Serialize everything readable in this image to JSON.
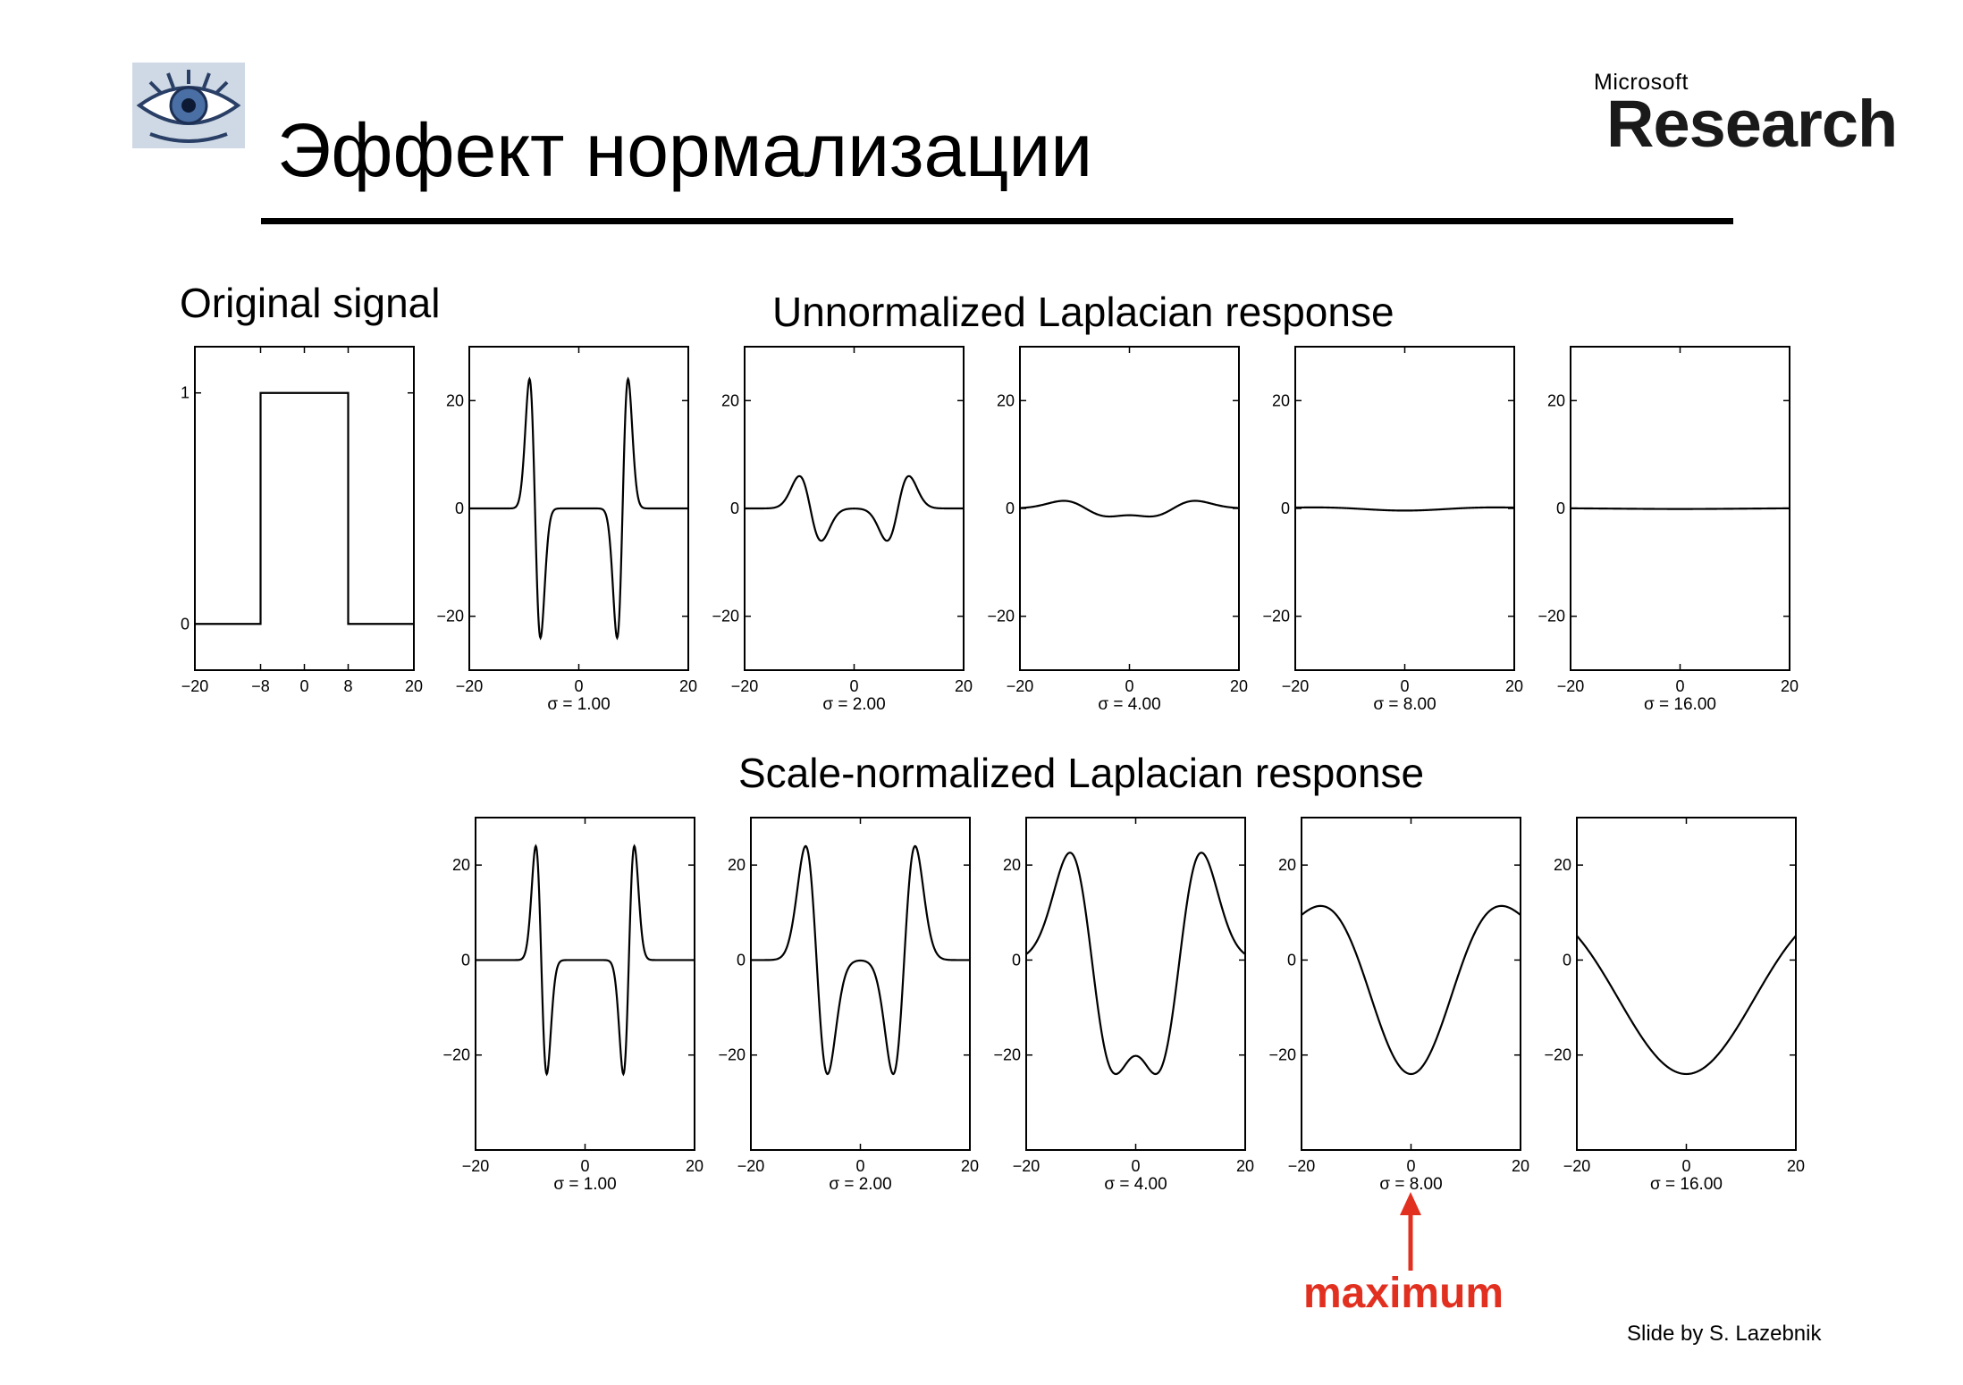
{
  "slide": {
    "title": "Эффект нормализации",
    "logo_left": "eye-logo",
    "brand_small": "Microsoft",
    "brand_big": "Research",
    "credit": "Slide by S. Lazebnik"
  },
  "sections": {
    "original": "Original signal",
    "unnormalized": "Unnormalized Laplacian response",
    "normalized": "Scale-normalized Laplacian response"
  },
  "annotation": {
    "label": "maximum",
    "color": "#e23020",
    "target_panel": "norm-8"
  },
  "chart_data": [
    {
      "id": "original",
      "type": "line",
      "title": "Original signal",
      "xlim": [
        -20,
        20
      ],
      "ylim": [
        -0.2,
        1.2
      ],
      "xticks": [
        -20,
        -8,
        0,
        8,
        20
      ],
      "yticks": [
        0,
        1
      ],
      "xlabel": "",
      "x": [
        -20,
        -8,
        -8,
        8,
        8,
        20
      ],
      "y": [
        0,
        0,
        1,
        1,
        0,
        0
      ]
    },
    {
      "id": "un-1",
      "type": "line",
      "row": "unnormalized",
      "sigma": 1,
      "xlabel": "σ = 1.00",
      "xlim": [
        -20,
        20
      ],
      "ylim": [
        -30,
        30
      ],
      "xticks": [
        -20,
        0,
        20
      ],
      "yticks": [
        -20,
        0,
        20
      ],
      "amplitude_peak": 24
    },
    {
      "id": "un-2",
      "type": "line",
      "row": "unnormalized",
      "sigma": 2,
      "xlabel": "σ = 2.00",
      "xlim": [
        -20,
        20
      ],
      "ylim": [
        -30,
        30
      ],
      "xticks": [
        -20,
        0,
        20
      ],
      "yticks": [
        -20,
        0,
        20
      ],
      "amplitude_peak": 6
    },
    {
      "id": "un-4",
      "type": "line",
      "row": "unnormalized",
      "sigma": 4,
      "xlabel": "σ = 4.00",
      "xlim": [
        -20,
        20
      ],
      "ylim": [
        -30,
        30
      ],
      "xticks": [
        -20,
        0,
        20
      ],
      "yticks": [
        -20,
        0,
        20
      ],
      "amplitude_peak": 1.5
    },
    {
      "id": "un-8",
      "type": "line",
      "row": "unnormalized",
      "sigma": 8,
      "xlabel": "σ = 8.00",
      "xlim": [
        -20,
        20
      ],
      "ylim": [
        -30,
        30
      ],
      "xticks": [
        -20,
        0,
        20
      ],
      "yticks": [
        -20,
        0,
        20
      ],
      "amplitude_peak": 0.4
    },
    {
      "id": "un-16",
      "type": "line",
      "row": "unnormalized",
      "sigma": 16,
      "xlabel": "σ = 16.00",
      "xlim": [
        -20,
        20
      ],
      "ylim": [
        -30,
        30
      ],
      "xticks": [
        -20,
        0,
        20
      ],
      "yticks": [
        -20,
        0,
        20
      ],
      "amplitude_peak": 0.1
    },
    {
      "id": "norm-1",
      "type": "line",
      "row": "normalized",
      "sigma": 1,
      "xlabel": "σ = 1.00",
      "xlim": [
        -20,
        20
      ],
      "ylim": [
        -40,
        30
      ],
      "xticks": [
        -20,
        0,
        20
      ],
      "yticks": [
        -20,
        0,
        20
      ],
      "amplitude_peak": 24
    },
    {
      "id": "norm-2",
      "type": "line",
      "row": "normalized",
      "sigma": 2,
      "xlabel": "σ = 2.00",
      "xlim": [
        -20,
        20
      ],
      "ylim": [
        -40,
        30
      ],
      "xticks": [
        -20,
        0,
        20
      ],
      "yticks": [
        -20,
        0,
        20
      ],
      "amplitude_peak": 24
    },
    {
      "id": "norm-4",
      "type": "line",
      "row": "normalized",
      "sigma": 4,
      "xlabel": "σ = 4.00",
      "xlim": [
        -20,
        20
      ],
      "ylim": [
        -40,
        30
      ],
      "xticks": [
        -20,
        0,
        20
      ],
      "yticks": [
        -20,
        0,
        20
      ],
      "amplitude_peak": 24
    },
    {
      "id": "norm-8",
      "type": "line",
      "row": "normalized",
      "sigma": 8,
      "xlabel": "σ = 8.00",
      "xlim": [
        -20,
        20
      ],
      "ylim": [
        -40,
        30
      ],
      "xticks": [
        -20,
        0,
        20
      ],
      "yticks": [
        -20,
        0,
        20
      ],
      "amplitude_peak": 24
    },
    {
      "id": "norm-16",
      "type": "line",
      "row": "normalized",
      "sigma": 16,
      "xlabel": "σ = 16.00",
      "xlim": [
        -20,
        20
      ],
      "ylim": [
        -40,
        30
      ],
      "xticks": [
        -20,
        0,
        20
      ],
      "yticks": [
        -20,
        0,
        20
      ],
      "amplitude_peak": 24
    }
  ]
}
